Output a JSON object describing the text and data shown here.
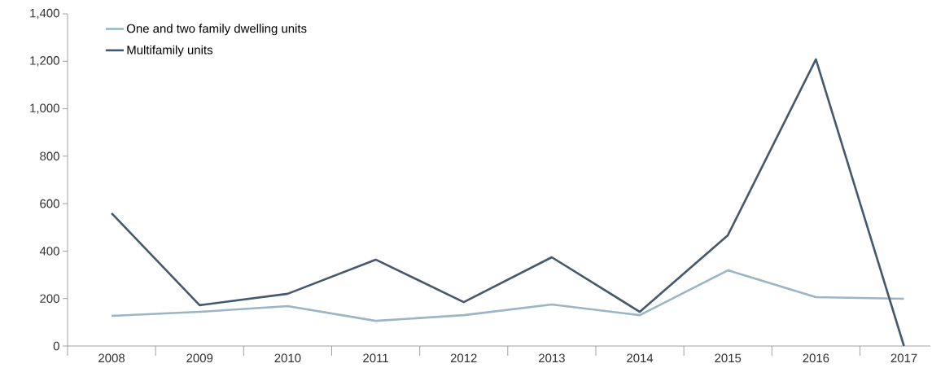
{
  "chart_data": {
    "type": "line",
    "categories": [
      "2008",
      "2009",
      "2010",
      "2011",
      "2012",
      "2013",
      "2014",
      "2015",
      "2016",
      "2017"
    ],
    "series": [
      {
        "name": "One and two family dwelling units",
        "color": "#9ab5c6",
        "values": [
          127,
          144,
          168,
          106,
          130,
          175,
          130,
          319,
          206,
          199
        ]
      },
      {
        "name": "Multifamily units",
        "color": "#44596b",
        "values": [
          560,
          172,
          220,
          364,
          185,
          374,
          144,
          467,
          1208,
          0
        ]
      }
    ],
    "ylim": [
      0,
      1400
    ],
    "yticks": [
      {
        "value": 0,
        "label": "0"
      },
      {
        "value": 200,
        "label": "200"
      },
      {
        "value": 400,
        "label": "400"
      },
      {
        "value": 600,
        "label": "600"
      },
      {
        "value": 800,
        "label": "800"
      },
      {
        "value": 1000,
        "label": "1,000"
      },
      {
        "value": 1200,
        "label": "1,200"
      },
      {
        "value": 1400,
        "label": "1,400"
      }
    ],
    "grid": false,
    "legend": "top left",
    "marker": "none",
    "line_style": "solid"
  }
}
